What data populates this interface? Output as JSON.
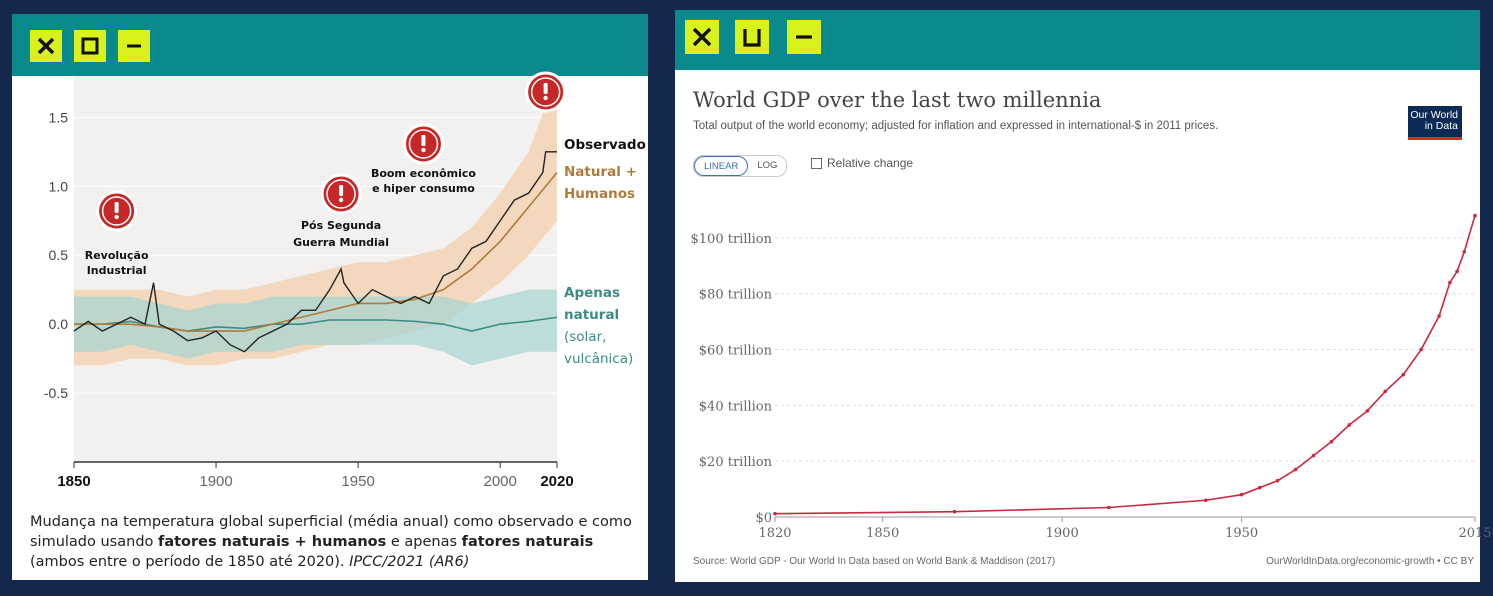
{
  "left_window": {
    "caption_parts": [
      "Mudança na temperatura global superficial (média anual) como observado e como simulado usando ",
      "fatores naturais + humanos",
      " e apenas ",
      "fatores naturais",
      " (ambos entre o período de 1850 até 2020). ",
      "IPCC/2021 (AR6)"
    ],
    "annotations": [
      {
        "lines": [
          "Revolução",
          "Industrial"
        ],
        "x": 1865
      },
      {
        "lines": [
          "Pós Segunda",
          "Guerra Mundial"
        ],
        "x": 1944
      },
      {
        "lines": [
          "Boom econômico",
          "e hiper consumo"
        ],
        "x": 1973
      },
      {
        "lines": [],
        "x": 2016
      }
    ]
  },
  "right_window": {
    "title": "World GDP over the last two millennia",
    "subtitle": "Total output of the world economy; adjusted for inflation and expressed in international-$ in 2011 prices.",
    "logo_lines": [
      "Our World",
      "in Data"
    ],
    "toggle": {
      "linear": "LINEAR",
      "log": "LOG",
      "relative": "Relative change"
    },
    "source": "Source: World GDP - Our World In Data based on World Bank & Maddison (2017)",
    "credit": "OurWorldInData.org/economic-growth • CC BY"
  },
  "colors": {
    "background": "#14284e",
    "titlebar": "#0a8a8c",
    "window_button": "#d9f21b",
    "observed": "#222222",
    "natural_human": "#b07a3a",
    "natural_human_band": "#f3d3b4",
    "natural_only": "#3a8c85",
    "natural_only_band": "#a9d6d1",
    "gdp_line": "#c8293f",
    "alert": "#c62828"
  },
  "chart_data": [
    {
      "type": "line",
      "title": "",
      "xlabel": "",
      "ylabel": "",
      "xlim": [
        1850,
        2020
      ],
      "ylim": [
        -1.0,
        1.8
      ],
      "x_ticks": [
        "1850",
        "1900",
        "1950",
        "2000",
        "2020"
      ],
      "y_ticks": [
        "1.5",
        "1.0",
        "0.5",
        "0.0",
        "-0.5"
      ],
      "series": [
        {
          "name": "Observado",
          "x": [
            1850,
            1855,
            1860,
            1865,
            1870,
            1875,
            1878,
            1880,
            1885,
            1890,
            1895,
            1900,
            1905,
            1910,
            1915,
            1920,
            1925,
            1930,
            1935,
            1940,
            1944,
            1945,
            1950,
            1955,
            1960,
            1965,
            1970,
            1975,
            1980,
            1985,
            1990,
            1995,
            2000,
            2005,
            2010,
            2015,
            2016,
            2020
          ],
          "values": [
            -0.05,
            0.02,
            -0.05,
            0.0,
            0.05,
            0.0,
            0.3,
            0.0,
            -0.05,
            -0.12,
            -0.1,
            -0.05,
            -0.15,
            -0.2,
            -0.1,
            -0.05,
            0.0,
            0.1,
            0.1,
            0.25,
            0.4,
            0.3,
            0.15,
            0.25,
            0.2,
            0.15,
            0.2,
            0.15,
            0.35,
            0.4,
            0.55,
            0.6,
            0.75,
            0.9,
            0.95,
            1.1,
            1.25,
            1.25
          ]
        },
        {
          "name": "Natural + Humanos",
          "x": [
            1850,
            1860,
            1870,
            1880,
            1890,
            1900,
            1910,
            1920,
            1930,
            1940,
            1950,
            1960,
            1970,
            1980,
            1990,
            2000,
            2010,
            2020
          ],
          "values": [
            0.0,
            0.0,
            0.0,
            -0.02,
            -0.05,
            -0.05,
            -0.05,
            0.0,
            0.05,
            0.1,
            0.15,
            0.15,
            0.18,
            0.25,
            0.4,
            0.6,
            0.85,
            1.1
          ],
          "band_low": [
            -0.3,
            -0.3,
            -0.25,
            -0.25,
            -0.3,
            -0.3,
            -0.25,
            -0.25,
            -0.2,
            -0.15,
            -0.15,
            -0.1,
            -0.05,
            0.0,
            0.15,
            0.3,
            0.5,
            0.75
          ],
          "band_high": [
            0.25,
            0.25,
            0.25,
            0.25,
            0.2,
            0.25,
            0.25,
            0.3,
            0.35,
            0.4,
            0.45,
            0.45,
            0.5,
            0.55,
            0.7,
            0.95,
            1.25,
            1.8
          ]
        },
        {
          "name": "Apenas natural",
          "x": [
            1850,
            1860,
            1870,
            1880,
            1890,
            1900,
            1910,
            1920,
            1930,
            1940,
            1950,
            1960,
            1970,
            1980,
            1990,
            2000,
            2010,
            2020
          ],
          "values": [
            0.0,
            0.0,
            0.02,
            -0.02,
            -0.05,
            -0.02,
            -0.03,
            0.0,
            0.0,
            0.03,
            0.03,
            0.03,
            0.02,
            0.0,
            -0.05,
            0.0,
            0.02,
            0.05
          ],
          "band_low": [
            -0.2,
            -0.2,
            -0.15,
            -0.2,
            -0.25,
            -0.2,
            -0.2,
            -0.2,
            -0.15,
            -0.15,
            -0.15,
            -0.15,
            -0.15,
            -0.2,
            -0.3,
            -0.25,
            -0.2,
            -0.2
          ],
          "band_high": [
            0.2,
            0.2,
            0.2,
            0.15,
            0.1,
            0.15,
            0.15,
            0.2,
            0.2,
            0.2,
            0.2,
            0.2,
            0.2,
            0.2,
            0.15,
            0.2,
            0.25,
            0.25
          ]
        }
      ],
      "legend": [
        {
          "lines": [
            "Observado"
          ],
          "color": "#111111",
          "bold": true
        },
        {
          "lines": [
            "Natural +",
            "Humanos"
          ],
          "color": "#b07a3a",
          "bold": true
        },
        {
          "lines": [
            "Apenas",
            "natural"
          ],
          "color": "#3a8c85",
          "bold": true
        },
        {
          "lines": [
            "(solar,",
            "vulcânica)"
          ],
          "color": "#3a8c85",
          "bold": false
        }
      ]
    },
    {
      "type": "line",
      "title": "World GDP over the last two millennia",
      "xlabel": "",
      "ylabel": "",
      "xlim": [
        1820,
        2015
      ],
      "ylim": [
        0,
        110
      ],
      "x_ticks": [
        "1820",
        "1850",
        "1900",
        "1950",
        "2015"
      ],
      "y_ticks": [
        "$0",
        "$20 trillion",
        "$40 trillion",
        "$60 trillion",
        "$80 trillion",
        "$100 trillion"
      ],
      "series": [
        {
          "name": "World GDP",
          "unit": "trillion international-$",
          "x": [
            1820,
            1870,
            1913,
            1940,
            1950,
            1955,
            1960,
            1965,
            1970,
            1975,
            1980,
            1985,
            1990,
            1995,
            2000,
            2005,
            2008,
            2010,
            2012,
            2015
          ],
          "values": [
            1.2,
            1.9,
            3.4,
            6.0,
            8.0,
            10.5,
            13.0,
            17.0,
            22.0,
            27.0,
            33.0,
            38.0,
            45.0,
            51.0,
            60.0,
            72.0,
            84.0,
            88.0,
            95.0,
            108.0
          ]
        }
      ]
    }
  ]
}
